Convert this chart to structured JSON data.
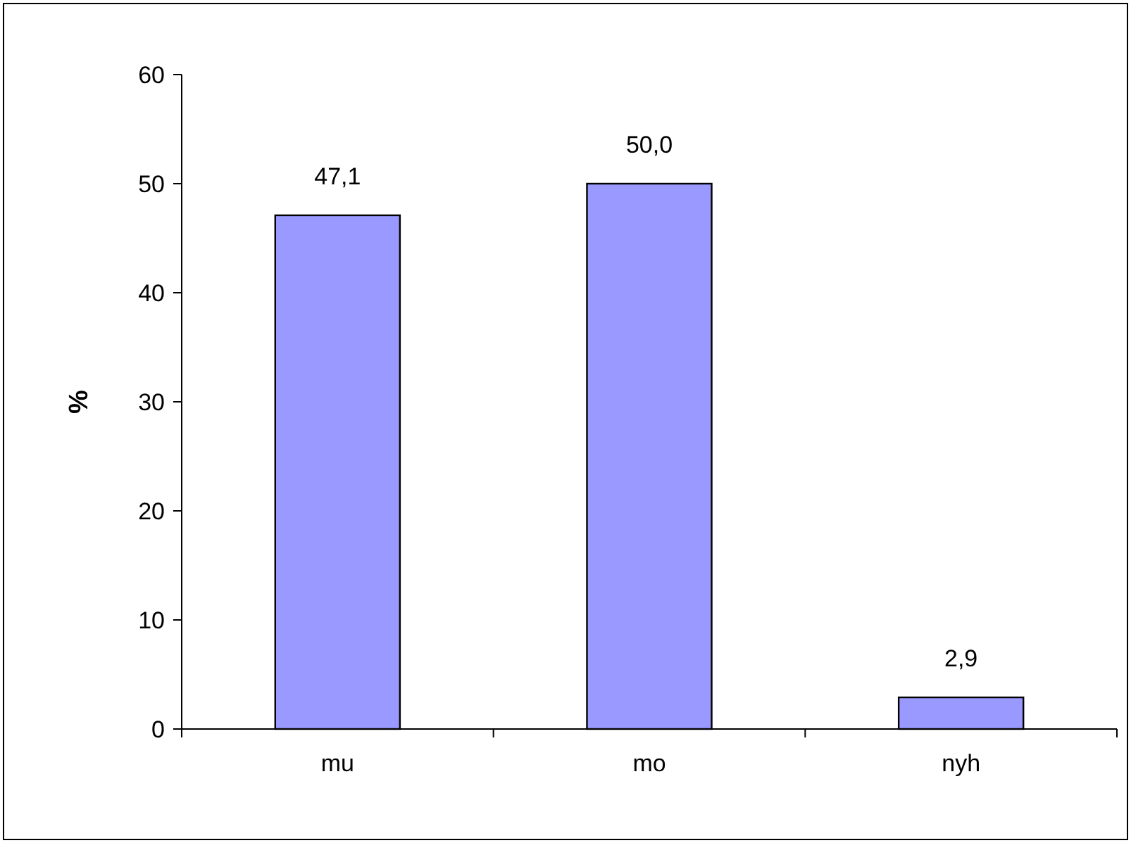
{
  "chart_data": {
    "type": "bar",
    "ylabel": "%",
    "categories": [
      "mu",
      "mo",
      "nyh"
    ],
    "values": [
      47.1,
      50.0,
      2.9
    ],
    "value_labels": [
      "47,1",
      "50,0",
      "2,9"
    ],
    "color": "#9999ff",
    "ylim": [
      0,
      60
    ],
    "yticks": [
      0,
      10,
      20,
      30,
      40,
      50,
      60
    ],
    "grid": false
  }
}
